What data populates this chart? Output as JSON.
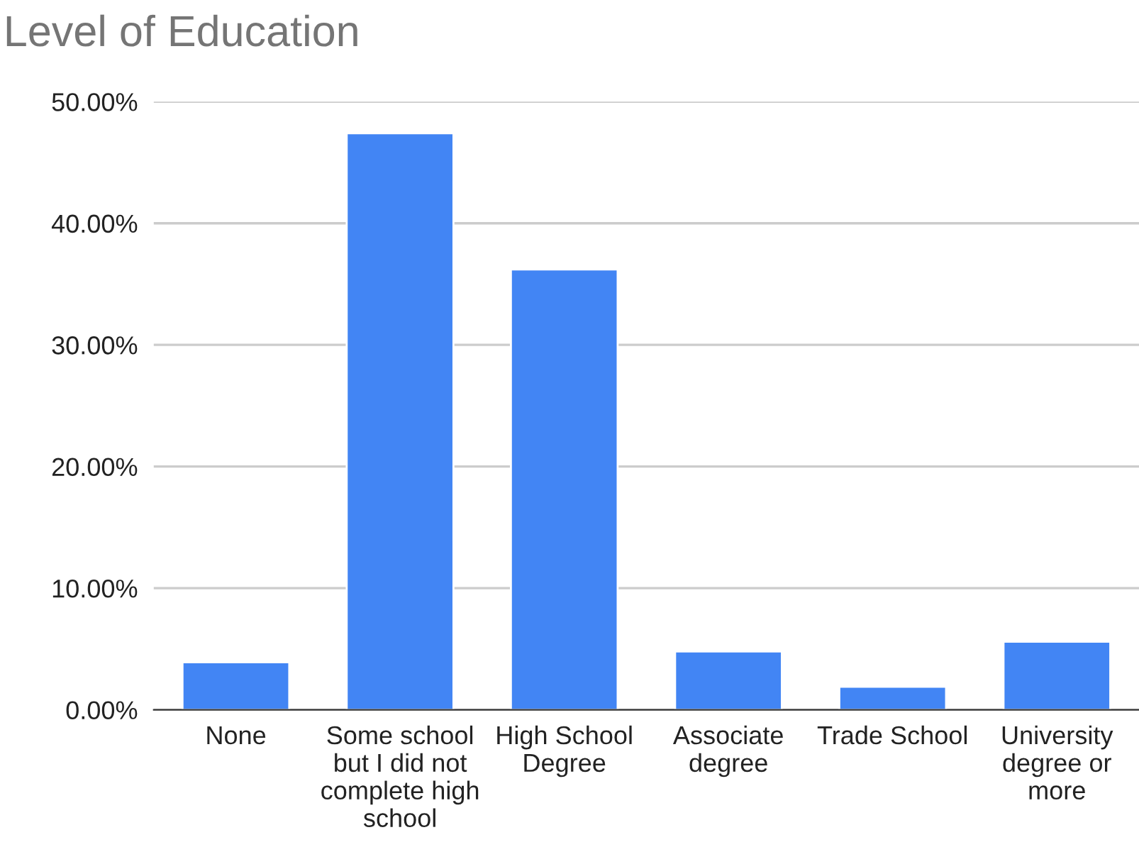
{
  "chart_data": {
    "type": "bar",
    "title": "Level of Education",
    "categories": [
      "None",
      "Some school\nbut I did not\ncomplete high\nschool",
      "High School\nDegree",
      "Associate\ndegree",
      "Trade School",
      "University\ndegree or\nmore"
    ],
    "values": [
      3.9,
      47.4,
      36.2,
      4.8,
      1.9,
      5.6
    ],
    "color": "#4285f4",
    "ylim": [
      0,
      50
    ],
    "yticks": [
      {
        "value": 0,
        "label": "0.00%"
      },
      {
        "value": 10,
        "label": "10.00%"
      },
      {
        "value": 20,
        "label": "20.00%"
      },
      {
        "value": 30,
        "label": "30.00%"
      },
      {
        "value": 40,
        "label": "40.00%"
      },
      {
        "value": 50,
        "label": "50.00%"
      }
    ],
    "grid": "y"
  }
}
